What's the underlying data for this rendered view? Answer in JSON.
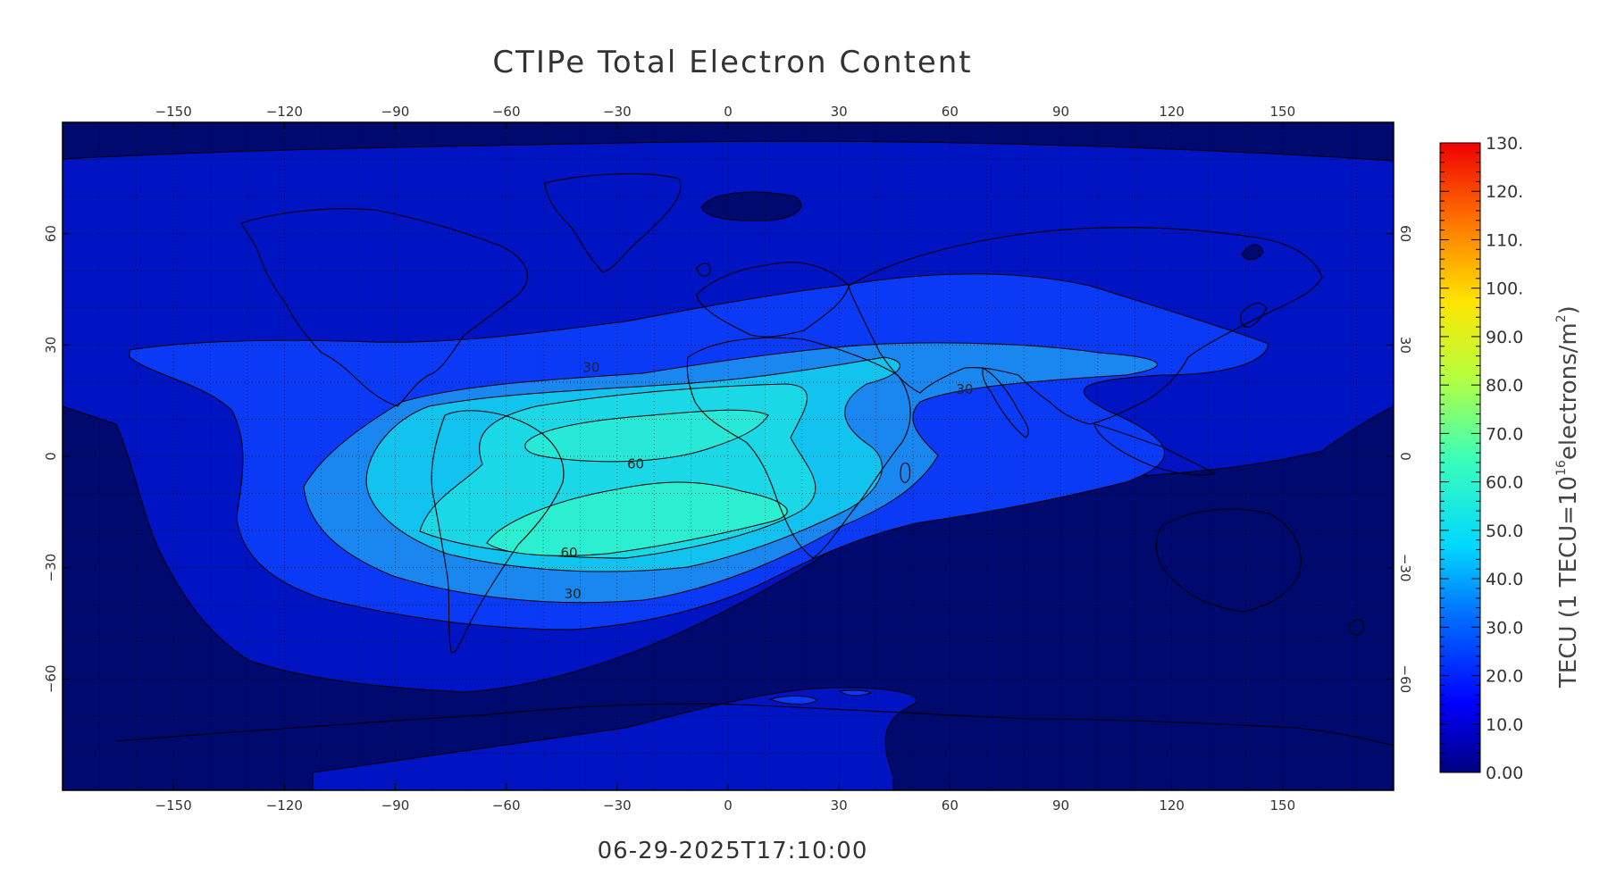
{
  "title": "CTIPe Total Electron Content",
  "timestamp": "06-29-2025T17:10:00",
  "map": {
    "projection": "cylindrical equidistant",
    "lon_range": [
      -180,
      180
    ],
    "lat_range": [
      -90,
      90
    ],
    "lon_ticks": [
      -150,
      -120,
      -90,
      -60,
      -30,
      0,
      30,
      60,
      90,
      120,
      150
    ],
    "lon_tick_labels": [
      "−150",
      "−120",
      "−90",
      "−60",
      "−30",
      "0",
      "30",
      "60",
      "90",
      "120",
      "150"
    ],
    "lat_ticks": [
      60,
      30,
      0,
      -30,
      -60
    ],
    "lat_tick_labels": [
      "60",
      "30",
      "0",
      "−30",
      "−60"
    ],
    "grid": "dotted every 10 degrees"
  },
  "contours": {
    "labels": [
      {
        "text": "30",
        "lon": -37,
        "lat": 24
      },
      {
        "text": "30",
        "lon": 64,
        "lat": 18
      },
      {
        "text": "60",
        "lon": -25,
        "lat": -2
      },
      {
        "text": "60",
        "lon": -43,
        "lat": -26
      },
      {
        "text": "30",
        "lon": -42,
        "lat": -37
      }
    ]
  },
  "colorbar": {
    "title_prefix": "TECU  (1 TECU=10",
    "title_exponent": "16",
    "title_middle": "electrons/m",
    "title_square": "2",
    "title_suffix": ")",
    "min": 0,
    "max": 130,
    "labels": [
      "130.",
      "120.",
      "110.",
      "100.",
      "90.0",
      "80.0",
      "70.0",
      "60.0",
      "50.0",
      "40.0",
      "30.0",
      "20.0",
      "10.0",
      "0.00"
    ],
    "colormap": "jet"
  },
  "colors": {
    "level_0": "#000a6e",
    "level_1": "#0014c4",
    "level_2": "#0a3af5",
    "level_3": "#1a86ef",
    "level_4": "#12c3ef",
    "level_5": "#2ceed0",
    "outline": "#000000",
    "grid": "#000000"
  }
}
